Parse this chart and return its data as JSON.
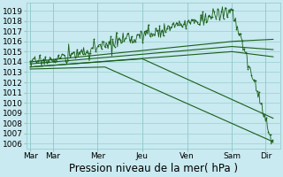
{
  "bg_color": "#c8eaf0",
  "grid_color": "#90c8c8",
  "line_color": "#1a5e1a",
  "xlabel": "Pression niveau de la mer( hPa )",
  "xtick_labels": [
    "Mar",
    "Mar",
    "Mer",
    "Jeu",
    "Ven",
    "Sam",
    "Dir"
  ],
  "xtick_positions": [
    0,
    12,
    36,
    60,
    84,
    108,
    126
  ],
  "ytick_min": 1006,
  "ytick_max": 1019,
  "ylim": [
    1005.5,
    1019.8
  ],
  "xlim": [
    -2,
    134
  ],
  "xlabel_fontsize": 8.5,
  "tick_fontsize": 6.5
}
